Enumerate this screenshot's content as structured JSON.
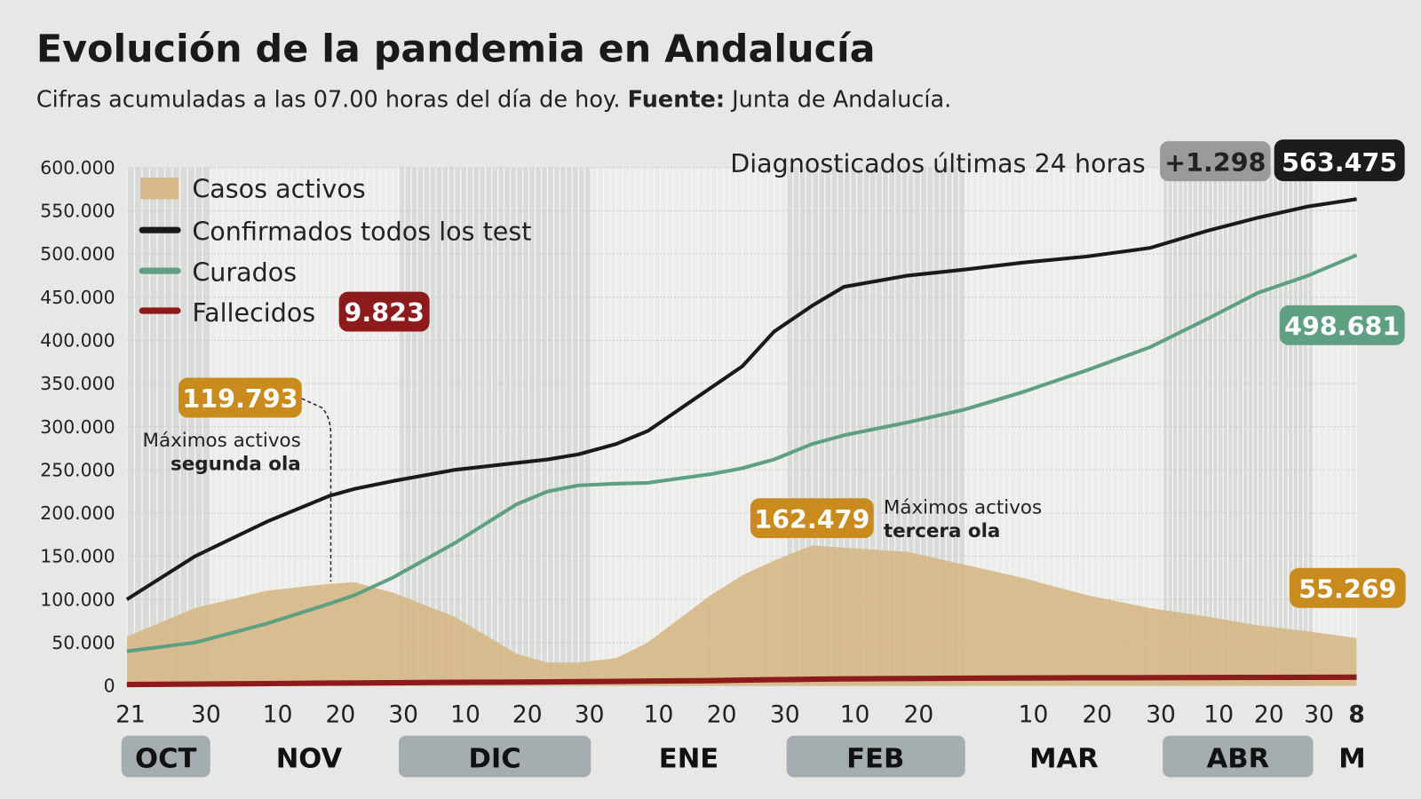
{
  "title": "Evolución de la pandemia en Andalucía",
  "subtitle_pre": "Cifras acumuladas a las 07.00 horas del día de hoy.",
  "subtitle_bold": "Fuente:",
  "subtitle_post": "Junta de Andalucía.",
  "header_right": {
    "label": "Diagnosticados últimas 24 horas",
    "delta": "+1.298",
    "total": "563.475"
  },
  "colors": {
    "background": "#e7e8e5",
    "activos": "#d6b889",
    "confirmados": "#1a1a1a",
    "curados": "#5f9f82",
    "fallecidos": "#8e1b1b",
    "highlight": "#c98a1e"
  },
  "annotations": {
    "fallecidos_badge": "9.823",
    "curados_badge": "498.681",
    "activos_last_badge": "55.269",
    "second_wave_value": "119.793",
    "second_wave_text": "Máximos activos",
    "second_wave_bold": "segunda ola",
    "third_wave_value": "162.479",
    "third_wave_text": "Máximos activos",
    "third_wave_bold": "tercera ola"
  },
  "chart_data": {
    "type": "line",
    "title": "Evolución de la pandemia en Andalucía",
    "xlabel": "",
    "ylabel": "",
    "ylim": [
      0,
      600000
    ],
    "grid": true,
    "legend_position": "top-left",
    "y_ticks": [
      "0",
      "50.000",
      "100.000",
      "150.000",
      "200.000",
      "250.000",
      "300.000",
      "350.000",
      "400.000",
      "450.000",
      "500.000",
      "550.000",
      "600.000"
    ],
    "x_ticks": [
      {
        "date": "2020-10-21",
        "label": "21"
      },
      {
        "date": "2020-10-30",
        "label": "30"
      },
      {
        "date": "2020-11-10",
        "label": "10"
      },
      {
        "date": "2020-11-20",
        "label": "20"
      },
      {
        "date": "2020-11-30",
        "label": "30"
      },
      {
        "date": "2020-12-10",
        "label": "10"
      },
      {
        "date": "2020-12-20",
        "label": "20"
      },
      {
        "date": "2020-12-30",
        "label": "30"
      },
      {
        "date": "2021-01-10",
        "label": "10"
      },
      {
        "date": "2021-01-20",
        "label": "20"
      },
      {
        "date": "2021-01-30",
        "label": "30"
      },
      {
        "date": "2021-02-10",
        "label": "10"
      },
      {
        "date": "2021-02-20",
        "label": "20"
      },
      {
        "date": "2021-03-10",
        "label": "10"
      },
      {
        "date": "2021-03-20",
        "label": "20"
      },
      {
        "date": "2021-03-30",
        "label": "30"
      },
      {
        "date": "2021-04-10",
        "label": "10"
      },
      {
        "date": "2021-04-20",
        "label": "20"
      },
      {
        "date": "2021-04-30",
        "label": "30"
      },
      {
        "date": "2021-05-08",
        "label": "8"
      }
    ],
    "months": [
      {
        "label": "OCT",
        "shaded": true
      },
      {
        "label": "NOV",
        "shaded": false
      },
      {
        "label": "DIC",
        "shaded": true
      },
      {
        "label": "ENE",
        "shaded": false
      },
      {
        "label": "FEB",
        "shaded": true
      },
      {
        "label": "MAR",
        "shaded": false
      },
      {
        "label": "ABR",
        "shaded": true
      },
      {
        "label": "M",
        "shaded": false
      }
    ],
    "dates": [
      "2020-10-21",
      "2020-10-30",
      "2020-11-10",
      "2020-11-20",
      "2020-11-24",
      "2020-11-30",
      "2020-12-10",
      "2020-12-20",
      "2020-12-25",
      "2020-12-30",
      "2021-01-05",
      "2021-01-10",
      "2021-01-20",
      "2021-01-25",
      "2021-01-30",
      "2021-02-05",
      "2021-02-10",
      "2021-02-20",
      "2021-03-01",
      "2021-03-10",
      "2021-03-20",
      "2021-03-30",
      "2021-04-10",
      "2021-04-20",
      "2021-04-30",
      "2021-05-08"
    ],
    "series": [
      {
        "name": "Casos activos",
        "kind": "area",
        "values": [
          57000,
          90000,
          110000,
          118000,
          119793,
          108000,
          80000,
          37000,
          27000,
          27000,
          32000,
          50000,
          105000,
          128000,
          145000,
          162479,
          160000,
          155000,
          140000,
          125000,
          105000,
          90000,
          80000,
          70000,
          63000,
          55269
        ]
      },
      {
        "name": "Confirmados todos los test",
        "kind": "line",
        "values": [
          100000,
          150000,
          190000,
          220000,
          228000,
          237000,
          250000,
          258000,
          262000,
          268000,
          280000,
          295000,
          345000,
          370000,
          410000,
          440000,
          462000,
          475000,
          482000,
          490000,
          497000,
          507000,
          527000,
          542000,
          555000,
          563475
        ]
      },
      {
        "name": "Curados",
        "kind": "line",
        "values": [
          40000,
          50000,
          72000,
          95000,
          105000,
          125000,
          165000,
          210000,
          225000,
          232000,
          234000,
          235000,
          245000,
          252000,
          262000,
          280000,
          290000,
          305000,
          320000,
          340000,
          365000,
          392000,
          425000,
          455000,
          475000,
          498681
        ]
      },
      {
        "name": "Fallecidos",
        "kind": "line",
        "values": [
          1500,
          2000,
          2500,
          3000,
          3200,
          3500,
          4000,
          4300,
          4500,
          4700,
          5000,
          5300,
          6000,
          6500,
          7000,
          7600,
          8000,
          8400,
          8700,
          9000,
          9200,
          9350,
          9500,
          9650,
          9750,
          9823
        ]
      }
    ]
  }
}
